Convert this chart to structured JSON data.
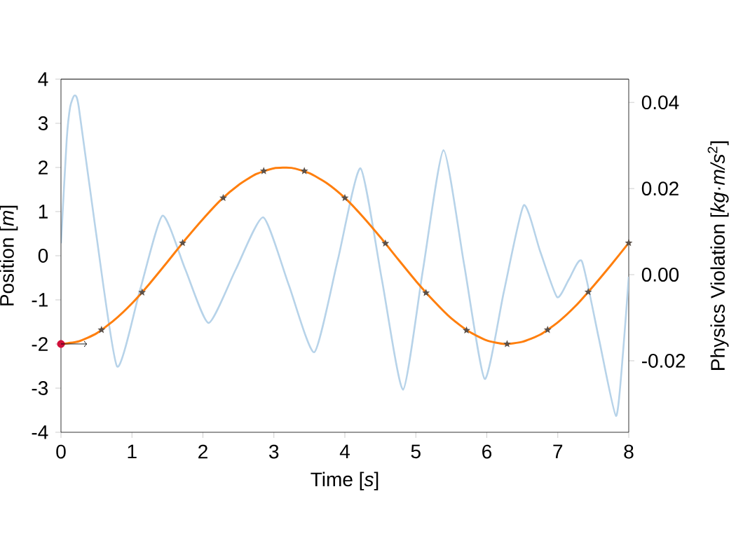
{
  "chart_data": {
    "type": "line",
    "xlabel": "Time [*s*]",
    "ylabel": "Position [*m*]",
    "y2label": "Physics Violation [*kg·m/s*$^{2}$]",
    "xlim": [
      0,
      8
    ],
    "xticks": [
      0,
      1,
      2,
      3,
      4,
      5,
      6,
      7,
      8
    ],
    "ylim": [
      -4,
      4
    ],
    "yticks": [
      -4,
      -3,
      -2,
      -1,
      0,
      1,
      2,
      3,
      4
    ],
    "y2lim": [
      -0.0366,
      0.0454
    ],
    "y2ticks": [
      -0.02,
      {
        "value": 0,
        "label": "0.00"
      },
      0.02,
      0.04
    ],
    "series": [
      {
        "axis": "y2",
        "color": "#b7d3e9",
        "x": [
          0,
          0.08,
          0.13,
          0.19,
          0.25,
          0.49,
          0.79,
          1.11,
          1.43,
          1.75,
          2.08,
          2.46,
          2.85,
          3.21,
          3.57,
          3.9,
          4.22,
          4.52,
          4.82,
          5.1,
          5.39,
          5.68,
          5.97,
          6.24,
          6.52,
          6.75,
          6.99,
          7.16,
          7.34,
          7.58,
          7.82,
          7.92,
          8
        ],
        "values": [
          0.0073,
          0.0312,
          0.039,
          0.0416,
          0.039,
          0.0102,
          -0.0213,
          -0.0038,
          0.0137,
          0.0013,
          -0.0112,
          0.0011,
          0.0133,
          -0.0024,
          -0.018,
          0.0034,
          0.0247,
          -0.001,
          -0.0267,
          0.0011,
          0.0289,
          0.0024,
          -0.0242,
          -0.004,
          0.0161,
          0.0055,
          -0.0052,
          -0.001,
          0.0031,
          -0.0149,
          -0.0328,
          -0.018,
          -0.0005
        ]
      },
      {
        "color": "#ff7f0e",
        "x": [
          0,
          0.25,
          0.5,
          0.75,
          1,
          1.25,
          1.5,
          1.75,
          2,
          2.25,
          2.5,
          2.75,
          3,
          3.25,
          3.5,
          3.75,
          4,
          4.25,
          4.5,
          4.75,
          5,
          5.25,
          5.5,
          5.75,
          6,
          6.25,
          6.5,
          6.75,
          7,
          7.25,
          7.5,
          7.75,
          8
        ],
        "values": [
          -2,
          -1.94,
          -1.76,
          -1.46,
          -1.08,
          -0.63,
          -0.14,
          0.36,
          0.83,
          1.26,
          1.6,
          1.85,
          1.98,
          1.99,
          1.87,
          1.64,
          1.31,
          0.89,
          0.42,
          -0.08,
          -0.57,
          -1.02,
          -1.42,
          -1.72,
          -1.92,
          -2.0,
          -1.95,
          -1.79,
          -1.51,
          -1.14,
          -0.69,
          -0.21,
          0.29
        ]
      },
      {
        "type": "scatter",
        "marker": "star",
        "color": "#5b5048",
        "x": [
          0.571,
          1.143,
          1.714,
          2.286,
          2.857,
          3.429,
          4.0,
          4.571,
          5.143,
          5.714,
          6.286,
          6.857,
          7.429,
          8.0
        ],
        "values": [
          -1.68,
          -0.83,
          0.29,
          1.31,
          1.92,
          1.92,
          1.31,
          0.28,
          -0.84,
          -1.69,
          -2.0,
          -1.68,
          -0.82,
          0.29
        ]
      },
      {
        "type": "scatter",
        "marker": "circle",
        "color": "#d0103a",
        "x": [
          0
        ],
        "values": [
          -2
        ]
      },
      {
        "color": "#000000",
        "x": [
          0,
          0.37
        ],
        "values": [
          -2,
          -2
        ]
      }
    ]
  }
}
